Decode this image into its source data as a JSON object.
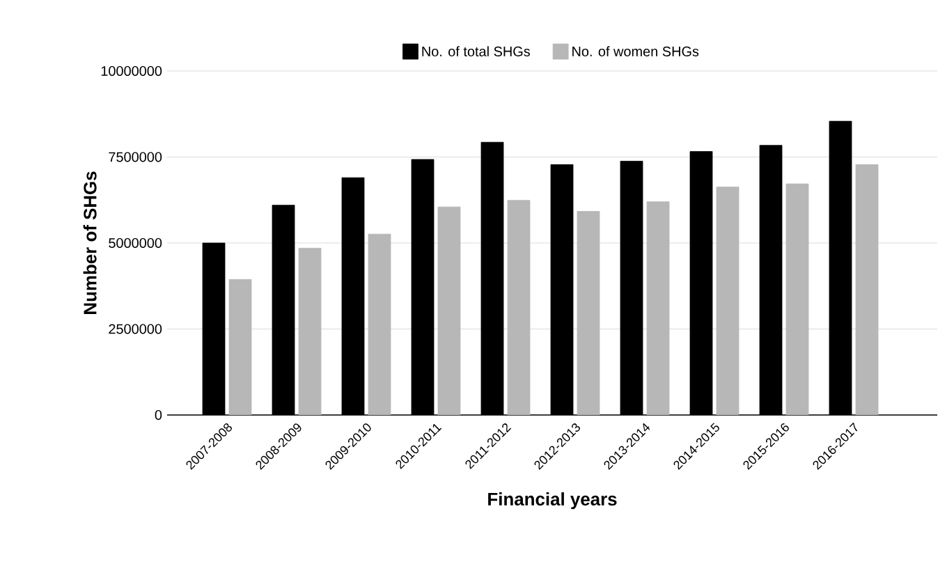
{
  "chart_data": {
    "type": "bar",
    "xlabel": "Financial years",
    "ylabel": "Number of SHGs",
    "categories": [
      "2007-2008",
      "2008-2009",
      "2009-2010",
      "2010-2011",
      "2011-2012",
      "2012-2013",
      "2013-2014",
      "2014-2015",
      "2015-2016",
      "2016-2017"
    ],
    "series": [
      {
        "name": "No. of total SHGs",
        "color": "#000000",
        "values": [
          5000000,
          6100000,
          6900000,
          7430000,
          7930000,
          7280000,
          7380000,
          7660000,
          7840000,
          8540000
        ]
      },
      {
        "name": "No. of women SHGs",
        "color": "#b7b7b7",
        "values": [
          3940000,
          4850000,
          5260000,
          6050000,
          6240000,
          5920000,
          6200000,
          6630000,
          6720000,
          7280000
        ]
      }
    ],
    "ylim": [
      0,
      10000000
    ],
    "yticks": [
      0,
      2500000,
      5000000,
      7500000,
      10000000
    ],
    "grid": "y",
    "legend": "top"
  }
}
